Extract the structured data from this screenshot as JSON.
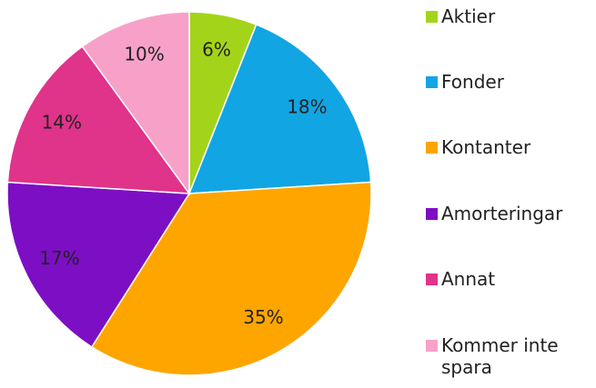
{
  "chart_data": {
    "type": "pie",
    "categories": [
      "Aktier",
      "Fonder",
      "Kontanter",
      "Amorteringar",
      "Annat",
      "Kommer inte spara"
    ],
    "values": [
      6,
      18,
      35,
      17,
      14,
      10
    ],
    "value_labels": [
      "6%",
      "18%",
      "35%",
      "17%",
      "14%",
      "10%"
    ],
    "colors": [
      "#a4d41a",
      "#12a5e3",
      "#ffa500",
      "#7c0fc4",
      "#e0338a",
      "#f7a1c9"
    ],
    "legend": "right"
  }
}
